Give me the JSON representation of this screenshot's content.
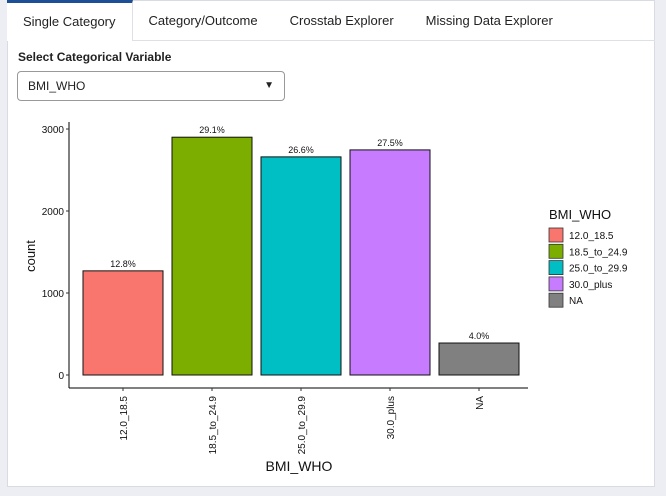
{
  "tabs": [
    {
      "label": "Single Category"
    },
    {
      "label": "Category/Outcome"
    },
    {
      "label": "Crosstab Explorer"
    },
    {
      "label": "Missing Data Explorer"
    }
  ],
  "select_label": "Select Categorical Variable",
  "select_value": "BMI_WHO",
  "chart_data": {
    "type": "bar",
    "title": "",
    "xlabel": "BMI_WHO",
    "ylabel": "count",
    "ylim": [
      0,
      3000
    ],
    "yticks": [
      0,
      1000,
      2000,
      3000
    ],
    "categories": [
      "12.0_18.5",
      "18.5_to_24.9",
      "25.0_to_29.9",
      "30.0_plus",
      "NA"
    ],
    "values": [
      1270,
      2900,
      2660,
      2745,
      390
    ],
    "labels": [
      "12.8%",
      "29.1%",
      "26.6%",
      "27.5%",
      "4.0%"
    ],
    "colors": [
      "#F8766D",
      "#7CAE00",
      "#00BFC4",
      "#C77CFF",
      "#808080"
    ],
    "legend": {
      "title": "BMI_WHO",
      "placement": "right"
    }
  }
}
